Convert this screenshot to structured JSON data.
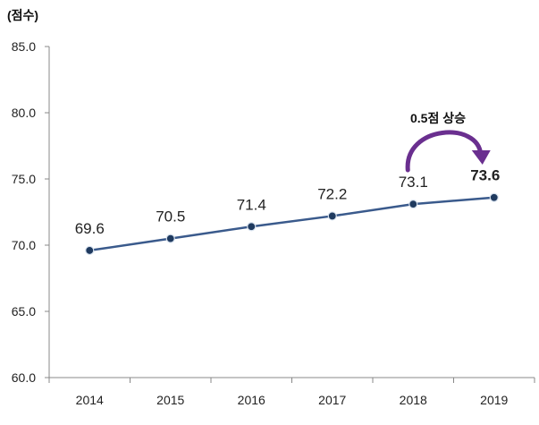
{
  "chart_data": {
    "type": "line",
    "unit_label": "(점수)",
    "categories": [
      "2014",
      "2015",
      "2016",
      "2017",
      "2018",
      "2019"
    ],
    "series": [
      {
        "values": [
          69.6,
          70.5,
          71.4,
          72.2,
          73.1,
          73.6
        ]
      }
    ],
    "data_labels": [
      "69.6",
      "70.5",
      "71.4",
      "72.2",
      "73.1",
      "73.6"
    ],
    "y_tick_labels": [
      "85.0",
      "80.0",
      "75.0",
      "70.0",
      "65.0",
      "60.0"
    ],
    "ylim": [
      60,
      85
    ],
    "grid": false,
    "annotation": {
      "text": "0.5점 상승",
      "from": "2018",
      "to": "2019"
    },
    "colors": {
      "line": "#3a5a8c",
      "marker": "#1f3a5f",
      "arrow": "#6a2f8f"
    }
  }
}
